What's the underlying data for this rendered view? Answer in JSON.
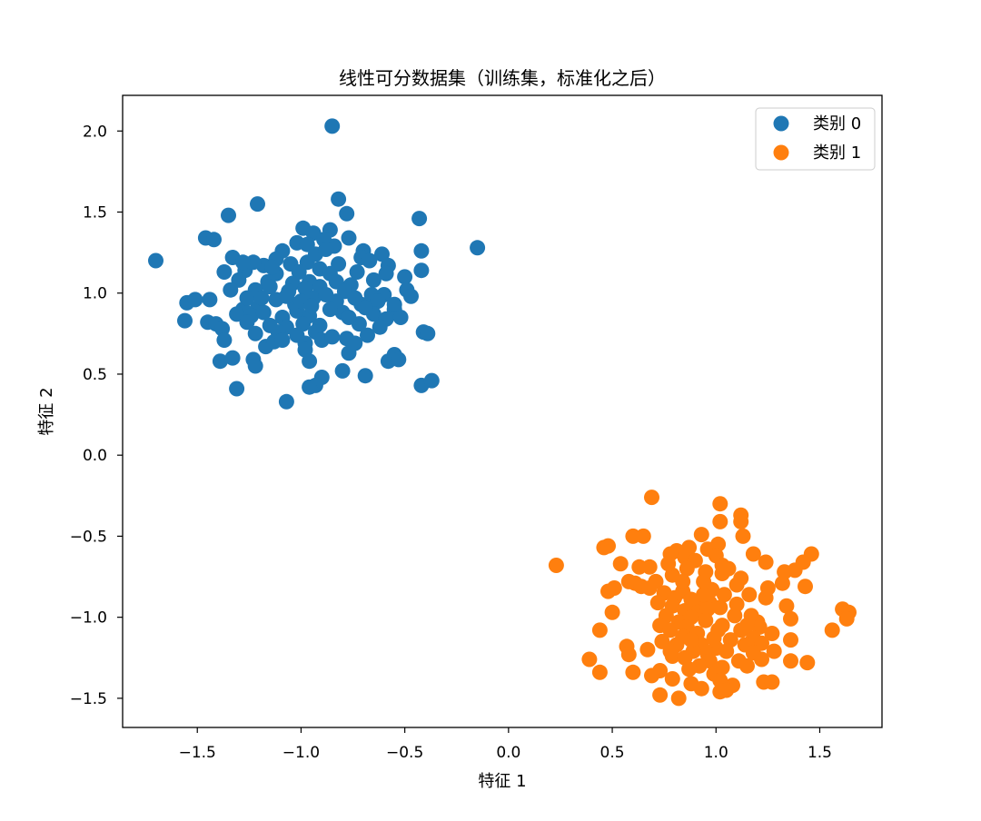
{
  "chart_data": {
    "type": "scatter",
    "title": "线性可分数据集（训练集，标准化之后）",
    "xlabel": "特征 1",
    "ylabel": "特征 2",
    "xlim": [
      -1.86,
      1.8
    ],
    "ylim": [
      -1.68,
      2.22
    ],
    "x_ticks": [
      {
        "value": -1.5,
        "label": "−1.5"
      },
      {
        "value": -1.0,
        "label": "−1.0"
      },
      {
        "value": -0.5,
        "label": "−0.5"
      },
      {
        "value": 0.0,
        "label": "0.0"
      },
      {
        "value": 0.5,
        "label": "0.5"
      },
      {
        "value": 1.0,
        "label": "1.0"
      },
      {
        "value": 1.5,
        "label": "1.5"
      }
    ],
    "y_ticks": [
      {
        "value": -1.5,
        "label": "−1.5"
      },
      {
        "value": -1.0,
        "label": "−1.0"
      },
      {
        "value": -0.5,
        "label": "−0.5"
      },
      {
        "value": 0.0,
        "label": "0.0"
      },
      {
        "value": 0.5,
        "label": "0.5"
      },
      {
        "value": 1.0,
        "label": "1.0"
      },
      {
        "value": 1.5,
        "label": "1.5"
      },
      {
        "value": 2.0,
        "label": "2.0"
      }
    ],
    "grid": false,
    "legend_position": "top-right",
    "series": [
      {
        "name": "类别 0",
        "color": "#1f77b4",
        "points": [
          [
            -0.85,
            2.03
          ],
          [
            -0.15,
            1.28
          ],
          [
            -1.7,
            1.2
          ],
          [
            -0.82,
            1.58
          ],
          [
            -1.21,
            1.55
          ],
          [
            -1.35,
            1.48
          ],
          [
            -0.78,
            1.49
          ],
          [
            -0.43,
            1.46
          ],
          [
            -0.99,
            1.4
          ],
          [
            -0.86,
            1.39
          ],
          [
            -0.94,
            1.37
          ],
          [
            -1.46,
            1.34
          ],
          [
            -1.42,
            1.33
          ],
          [
            -0.77,
            1.34
          ],
          [
            -1.02,
            1.31
          ],
          [
            -0.97,
            1.3
          ],
          [
            -0.89,
            1.33
          ],
          [
            -1.09,
            1.26
          ],
          [
            -0.84,
            1.29
          ],
          [
            -0.7,
            1.26
          ],
          [
            -0.71,
            1.22
          ],
          [
            -0.61,
            1.24
          ],
          [
            -0.42,
            1.26
          ],
          [
            -1.33,
            1.22
          ],
          [
            -1.18,
            1.17
          ],
          [
            -1.12,
            1.21
          ],
          [
            -1.05,
            1.18
          ],
          [
            -0.97,
            1.19
          ],
          [
            -0.93,
            1.24
          ],
          [
            -0.82,
            1.18
          ],
          [
            -0.67,
            1.2
          ],
          [
            -0.58,
            1.17
          ],
          [
            -1.37,
            1.13
          ],
          [
            -1.27,
            1.14
          ],
          [
            -1.23,
            1.19
          ],
          [
            -1.12,
            1.12
          ],
          [
            -1.01,
            1.13
          ],
          [
            -0.91,
            1.15
          ],
          [
            -0.86,
            1.12
          ],
          [
            -0.59,
            1.12
          ],
          [
            -0.42,
            1.14
          ],
          [
            -0.5,
            1.1
          ],
          [
            -1.3,
            1.08
          ],
          [
            -1.16,
            1.07
          ],
          [
            -1.04,
            1.06
          ],
          [
            -0.96,
            1.07
          ],
          [
            -0.83,
            1.07
          ],
          [
            -0.76,
            1.05
          ],
          [
            -1.34,
            1.02
          ],
          [
            -1.22,
            1.02
          ],
          [
            -1.15,
            1.04
          ],
          [
            -1.06,
            1.01
          ],
          [
            -0.98,
            1.03
          ],
          [
            -0.91,
            1.04
          ],
          [
            -0.79,
            1.01
          ],
          [
            -0.66,
            0.99
          ],
          [
            -0.6,
            0.99
          ],
          [
            -0.49,
            1.02
          ],
          [
            -1.55,
            0.94
          ],
          [
            -1.51,
            0.96
          ],
          [
            -1.44,
            0.96
          ],
          [
            -1.28,
            0.9
          ],
          [
            -1.21,
            0.91
          ],
          [
            -1.12,
            0.96
          ],
          [
            -1.03,
            0.93
          ],
          [
            -0.94,
            0.97
          ],
          [
            -0.88,
            0.99
          ],
          [
            -0.71,
            0.93
          ],
          [
            -0.63,
            0.95
          ],
          [
            -0.55,
            0.9
          ],
          [
            -0.47,
            0.98
          ],
          [
            -1.31,
            0.87
          ],
          [
            -1.24,
            0.86
          ],
          [
            -1.18,
            0.88
          ],
          [
            -1.09,
            0.85
          ],
          [
            -1.02,
            0.89
          ],
          [
            -0.96,
            0.86
          ],
          [
            -0.8,
            0.88
          ],
          [
            -0.65,
            0.87
          ],
          [
            -0.59,
            0.84
          ],
          [
            -1.56,
            0.83
          ],
          [
            -1.45,
            0.82
          ],
          [
            -1.41,
            0.81
          ],
          [
            -1.38,
            0.78
          ],
          [
            -1.26,
            0.82
          ],
          [
            -1.15,
            0.8
          ],
          [
            -1.07,
            0.79
          ],
          [
            -0.99,
            0.81
          ],
          [
            -0.91,
            0.8
          ],
          [
            -0.72,
            0.81
          ],
          [
            -0.62,
            0.79
          ],
          [
            -1.22,
            0.75
          ],
          [
            -1.11,
            0.76
          ],
          [
            -1.02,
            0.74
          ],
          [
            -0.93,
            0.76
          ],
          [
            -0.78,
            0.72
          ],
          [
            -0.68,
            0.74
          ],
          [
            -1.37,
            0.71
          ],
          [
            -1.17,
            0.67
          ],
          [
            -1.13,
            0.7
          ],
          [
            -0.98,
            0.69
          ],
          [
            -0.9,
            0.71
          ],
          [
            -0.41,
            0.76
          ],
          [
            -0.39,
            0.75
          ],
          [
            -0.98,
            0.65
          ],
          [
            -0.77,
            0.63
          ],
          [
            -1.39,
            0.58
          ],
          [
            -1.33,
            0.6
          ],
          [
            -1.23,
            0.59
          ],
          [
            -1.22,
            0.55
          ],
          [
            -0.96,
            0.58
          ],
          [
            -0.58,
            0.58
          ],
          [
            -0.55,
            0.62
          ],
          [
            -0.53,
            0.59
          ],
          [
            -0.8,
            0.52
          ],
          [
            -0.69,
            0.49
          ],
          [
            -0.9,
            0.48
          ],
          [
            -0.42,
            0.43
          ],
          [
            -0.37,
            0.46
          ],
          [
            -0.93,
            0.43
          ],
          [
            -0.96,
            0.42
          ],
          [
            -1.31,
            0.41
          ],
          [
            -1.07,
            0.33
          ],
          [
            -1.26,
            0.97
          ],
          [
            -1.0,
            0.95
          ],
          [
            -0.83,
            0.95
          ],
          [
            -0.74,
            0.97
          ],
          [
            -0.52,
            0.85
          ],
          [
            -0.86,
            0.9
          ],
          [
            -0.77,
            0.85
          ],
          [
            -0.69,
            0.91
          ],
          [
            -0.55,
            0.93
          ],
          [
            -1.19,
            0.97
          ],
          [
            -1.07,
            0.98
          ],
          [
            -0.95,
            0.92
          ],
          [
            -0.88,
            1.27
          ],
          [
            -1.28,
            1.19
          ],
          [
            -1.14,
            1.16
          ],
          [
            -0.73,
            1.13
          ],
          [
            -0.65,
            1.08
          ],
          [
            -1.09,
            0.71
          ],
          [
            -0.85,
            0.73
          ],
          [
            -0.74,
            0.69
          ]
        ]
      },
      {
        "name": "类别 1",
        "color": "#ff7f0e",
        "points": [
          [
            0.69,
            -0.26
          ],
          [
            1.02,
            -0.3
          ],
          [
            0.23,
            -0.68
          ],
          [
            1.12,
            -0.37
          ],
          [
            1.12,
            -0.41
          ],
          [
            1.02,
            -0.41
          ],
          [
            0.93,
            -0.49
          ],
          [
            0.6,
            -0.5
          ],
          [
            0.65,
            -0.5
          ],
          [
            1.13,
            -0.5
          ],
          [
            1.01,
            -0.55
          ],
          [
            0.87,
            -0.57
          ],
          [
            0.81,
            -0.59
          ],
          [
            0.96,
            -0.58
          ],
          [
            1.46,
            -0.61
          ],
          [
            0.46,
            -0.57
          ],
          [
            0.48,
            -0.56
          ],
          [
            1.18,
            -0.61
          ],
          [
            0.78,
            -0.61
          ],
          [
            0.85,
            -0.63
          ],
          [
            1.24,
            -0.66
          ],
          [
            0.54,
            -0.67
          ],
          [
            0.9,
            -0.65
          ],
          [
            0.63,
            -0.69
          ],
          [
            0.68,
            -0.69
          ],
          [
            0.86,
            -0.7
          ],
          [
            1.42,
            -0.66
          ],
          [
            1.38,
            -0.71
          ],
          [
            1.33,
            -0.72
          ],
          [
            0.95,
            -0.72
          ],
          [
            1.03,
            -0.73
          ],
          [
            1.06,
            -0.7
          ],
          [
            0.79,
            -0.74
          ],
          [
            0.58,
            -0.78
          ],
          [
            0.61,
            -0.79
          ],
          [
            0.64,
            -0.81
          ],
          [
            0.71,
            -0.78
          ],
          [
            0.94,
            -0.78
          ],
          [
            1.12,
            -0.76
          ],
          [
            1.32,
            -0.79
          ],
          [
            1.43,
            -0.81
          ],
          [
            0.51,
            -0.82
          ],
          [
            0.48,
            -0.84
          ],
          [
            0.68,
            -0.82
          ],
          [
            0.75,
            -0.85
          ],
          [
            0.84,
            -0.84
          ],
          [
            0.98,
            -0.83
          ],
          [
            1.04,
            -0.86
          ],
          [
            0.8,
            -0.88
          ],
          [
            0.88,
            -0.89
          ],
          [
            0.93,
            -0.9
          ],
          [
            1.16,
            -0.86
          ],
          [
            1.24,
            -0.88
          ],
          [
            0.72,
            -0.91
          ],
          [
            0.79,
            -0.93
          ],
          [
            0.97,
            -0.91
          ],
          [
            1.02,
            -0.94
          ],
          [
            1.1,
            -0.92
          ],
          [
            1.34,
            -0.93
          ],
          [
            0.85,
            -0.96
          ],
          [
            0.91,
            -0.97
          ],
          [
            0.96,
            -0.95
          ],
          [
            1.61,
            -0.95
          ],
          [
            1.64,
            -0.97
          ],
          [
            0.5,
            -0.97
          ],
          [
            0.76,
            -0.99
          ],
          [
            0.88,
            -1.0
          ],
          [
            1.09,
            -0.99
          ],
          [
            1.17,
            -0.99
          ],
          [
            1.63,
            -1.01
          ],
          [
            1.36,
            -1.01
          ],
          [
            0.82,
            -1.03
          ],
          [
            0.95,
            -1.02
          ],
          [
            1.03,
            -1.05
          ],
          [
            1.2,
            -1.03
          ],
          [
            0.73,
            -1.05
          ],
          [
            0.86,
            -1.06
          ],
          [
            1.12,
            -1.08
          ],
          [
            1.21,
            -1.06
          ],
          [
            0.44,
            -1.08
          ],
          [
            0.78,
            -1.08
          ],
          [
            0.91,
            -1.1
          ],
          [
            1.01,
            -1.08
          ],
          [
            1.27,
            -1.1
          ],
          [
            1.56,
            -1.08
          ],
          [
            0.84,
            -1.12
          ],
          [
            1.07,
            -1.14
          ],
          [
            1.18,
            -1.13
          ],
          [
            1.36,
            -1.14
          ],
          [
            1.22,
            -1.16
          ],
          [
            0.74,
            -1.15
          ],
          [
            0.81,
            -1.17
          ],
          [
            0.93,
            -1.17
          ],
          [
            1.0,
            -1.19
          ],
          [
            1.14,
            -1.17
          ],
          [
            0.57,
            -1.18
          ],
          [
            0.67,
            -1.2
          ],
          [
            0.78,
            -1.21
          ],
          [
            0.89,
            -1.21
          ],
          [
            0.96,
            -1.23
          ],
          [
            1.05,
            -1.21
          ],
          [
            1.18,
            -1.22
          ],
          [
            1.28,
            -1.21
          ],
          [
            0.58,
            -1.23
          ],
          [
            0.79,
            -1.24
          ],
          [
            0.85,
            -1.25
          ],
          [
            0.97,
            -1.27
          ],
          [
            1.11,
            -1.27
          ],
          [
            1.22,
            -1.26
          ],
          [
            1.36,
            -1.27
          ],
          [
            1.44,
            -1.28
          ],
          [
            0.39,
            -1.26
          ],
          [
            0.92,
            -1.3
          ],
          [
            1.03,
            -1.31
          ],
          [
            1.15,
            -1.3
          ],
          [
            0.73,
            -1.33
          ],
          [
            0.87,
            -1.32
          ],
          [
            0.99,
            -1.35
          ],
          [
            0.44,
            -1.34
          ],
          [
            0.6,
            -1.34
          ],
          [
            0.69,
            -1.36
          ],
          [
            0.79,
            -1.38
          ],
          [
            1.02,
            -1.39
          ],
          [
            1.08,
            -1.42
          ],
          [
            1.23,
            -1.4
          ],
          [
            1.27,
            -1.4
          ],
          [
            0.88,
            -1.41
          ],
          [
            0.93,
            -1.44
          ],
          [
            1.02,
            -1.46
          ],
          [
            1.05,
            -1.45
          ],
          [
            0.73,
            -1.48
          ],
          [
            0.82,
            -1.5
          ],
          [
            1.0,
            -0.62
          ],
          [
            1.03,
            -0.68
          ],
          [
            0.77,
            -0.67
          ],
          [
            1.1,
            -0.8
          ],
          [
            1.25,
            -0.82
          ],
          [
            0.99,
            -1.13
          ],
          [
            0.88,
            -1.14
          ],
          [
            1.15,
            -1.05
          ],
          [
            0.84,
            -0.78
          ],
          [
            0.94,
            -0.86
          ]
        ]
      }
    ]
  }
}
